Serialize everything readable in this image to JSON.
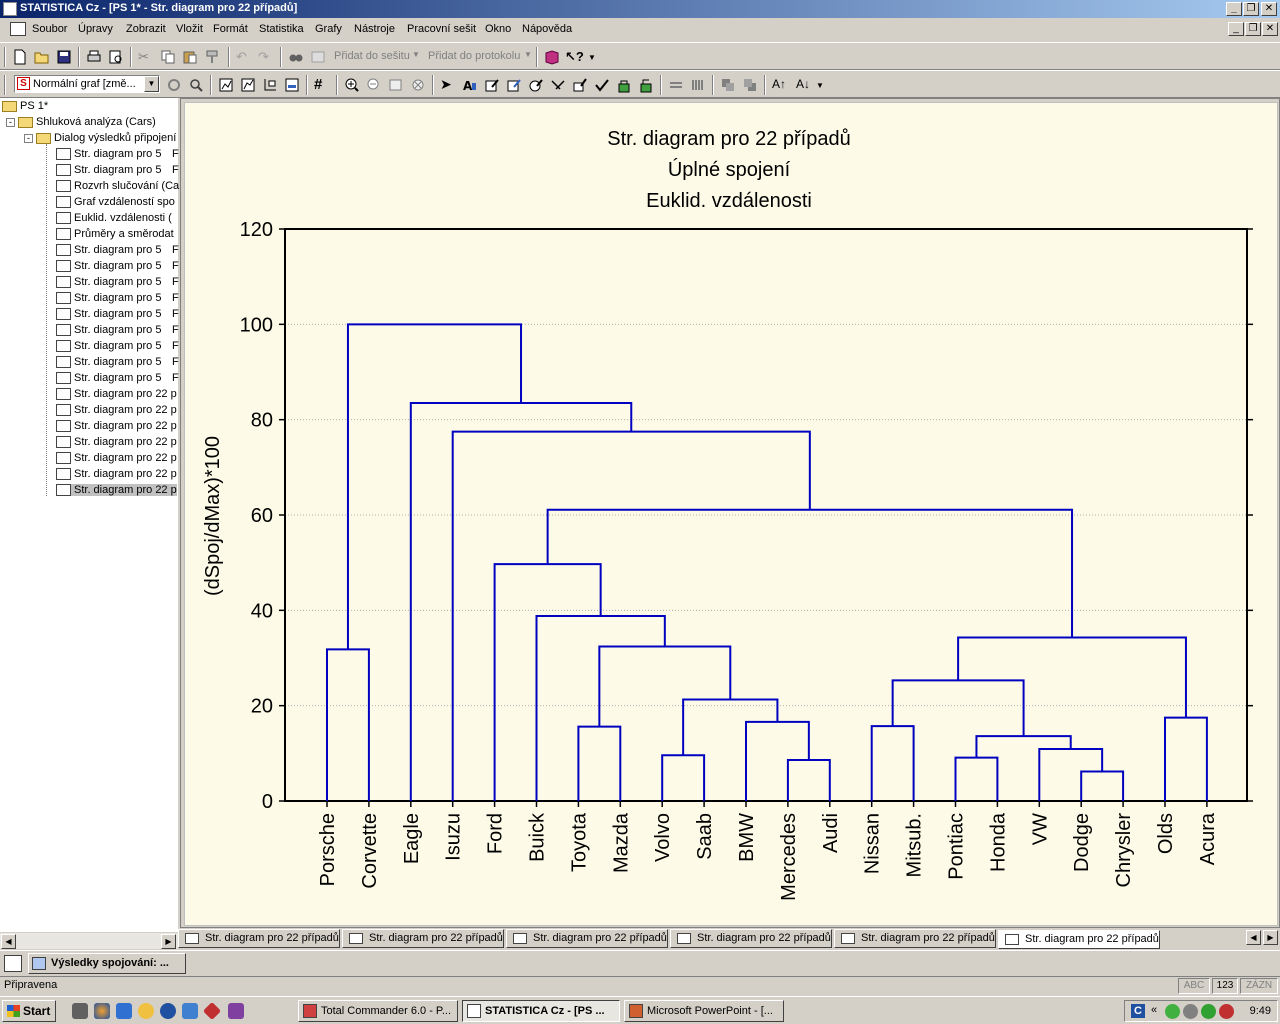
{
  "window": {
    "title": "STATISTICA Cz - [PS 1* - Str. diagram pro 22 případů]"
  },
  "menu": [
    "Soubor",
    "Úpravy",
    "Zobrazit",
    "Vložit",
    "Formát",
    "Statistika",
    "Grafy",
    "Nástroje",
    "Pracovní sešit",
    "Okno",
    "Nápověda"
  ],
  "toolbar1": {
    "add_to_workbook": "Přidat do sešitu",
    "add_to_report": "Přidat do protokolu"
  },
  "toolbar2": {
    "graph_mode": "Normální graf [změ..."
  },
  "tree": {
    "root": "PS 1*",
    "analysis": "Shluková analýza (Cars)",
    "dialog": "Dialog výsledků připojení",
    "items": [
      "Str. diagram pro 5",
      "Str. diagram pro 5",
      "Rozvrh slučování (Ca",
      "Graf vzdáleností spo",
      "Euklid. vzdálenosti (",
      "Průměry a směrodat",
      "Str. diagram pro 5",
      "Str. diagram pro 5",
      "Str. diagram pro 5",
      "Str. diagram pro 5",
      "Str. diagram pro 5",
      "Str. diagram pro 5",
      "Str. diagram pro 5",
      "Str. diagram pro 5",
      "Str. diagram pro 5",
      "Str. diagram pro 22 p",
      "Str. diagram pro 22 p",
      "Str. diagram pro 22 p",
      "Str. diagram pro 22 p",
      "Str. diagram pro 22 p",
      "Str. diagram pro 22 p",
      "Str. diagram pro 22 p"
    ],
    "item_suffix": [
      "F",
      "F",
      "",
      "",
      "",
      "",
      "F",
      "F",
      "F",
      "F",
      "F",
      "F",
      "F",
      "F",
      "F",
      "",
      "",
      "",
      "",
      "",
      "",
      ""
    ]
  },
  "tabs": [
    "Str. diagram pro 22 případů",
    "Str. diagram pro 22 případů",
    "Str. diagram pro 22 případů",
    "Str. diagram pro 22 případů",
    "Str. diagram pro 22 případů",
    "Str. diagram pro 22 případů"
  ],
  "task_strip": {
    "button": "Výsledky spojování: ..."
  },
  "status": {
    "text": "Připravena",
    "abc": "ABC",
    "num": "123",
    "zazn": "ZÁZN"
  },
  "taskbar": {
    "start": "Start",
    "windows": [
      "Total Commander 6.0 - P...",
      "STATISTICA Cz - [PS ...",
      "Microsoft PowerPoint - [..."
    ],
    "clock": "9:49"
  },
  "chart_data": {
    "type": "dendrogram",
    "title": [
      "Str. diagram pro 22 případů",
      "Úplné spojení",
      "Euklid. vzdálenosti"
    ],
    "ylabel": "(dSpoj/dMax)*100",
    "ylim": [
      0,
      120
    ],
    "yticks": [
      0,
      20,
      40,
      60,
      80,
      100,
      120
    ],
    "grid": "horizontal dotted",
    "line_color": "#0000c0",
    "leaves": [
      "Porsche",
      "Corvette",
      "Eagle",
      "Isuzu",
      "Ford",
      "Buick",
      "Toyota",
      "Mazda",
      "Volvo",
      "Saab",
      "BMW",
      "Mercedes",
      "Audi",
      "Nissan",
      "Mitsub.",
      "Pontiac",
      "Honda",
      "VW",
      "Dodge",
      "Chrysler",
      "Olds",
      "Acura"
    ],
    "merges": [
      {
        "a": "Porsche",
        "b": "Corvette",
        "height": 31.8,
        "id": "m1"
      },
      {
        "a": "Mercedes",
        "b": "Audi",
        "height": 8.6,
        "id": "m2"
      },
      {
        "a": "BMW",
        "b": "m2",
        "height": 16.6,
        "id": "m3"
      },
      {
        "a": "Volvo",
        "b": "Saab",
        "height": 9.6,
        "id": "m4"
      },
      {
        "a": "m4",
        "b": "m3",
        "height": 21.3,
        "id": "m5"
      },
      {
        "a": "Toyota",
        "b": "Mazda",
        "height": 15.6,
        "id": "m6"
      },
      {
        "a": "m6",
        "b": "m5",
        "height": 32.4,
        "id": "m7"
      },
      {
        "a": "Buick",
        "b": "m7",
        "height": 38.8,
        "id": "m8"
      },
      {
        "a": "Ford",
        "b": "m8",
        "height": 49.7,
        "id": "m9"
      },
      {
        "a": "Dodge",
        "b": "Chrysler",
        "height": 6.2,
        "id": "m10"
      },
      {
        "a": "VW",
        "b": "m10",
        "height": 10.9,
        "id": "m11"
      },
      {
        "a": "Pontiac",
        "b": "Honda",
        "height": 9.1,
        "id": "m12"
      },
      {
        "a": "m12",
        "b": "m11",
        "height": 13.6,
        "id": "m13"
      },
      {
        "a": "Nissan",
        "b": "Mitsub.",
        "height": 15.7,
        "id": "m14"
      },
      {
        "a": "m14",
        "b": "m13",
        "height": 25.3,
        "id": "m15"
      },
      {
        "a": "Olds",
        "b": "Acura",
        "height": 17.5,
        "id": "m16"
      },
      {
        "a": "m15",
        "b": "m16",
        "height": 34.3,
        "id": "m17"
      },
      {
        "a": "m9",
        "b": "m17",
        "height": 61.1,
        "id": "m18"
      },
      {
        "a": "Isuzu",
        "b": "m18",
        "height": 77.5,
        "id": "m19"
      },
      {
        "a": "Eagle",
        "b": "m19",
        "height": 83.5,
        "id": "m20"
      },
      {
        "a": "m1",
        "b": "m20",
        "height": 100,
        "id": "m21"
      }
    ]
  }
}
